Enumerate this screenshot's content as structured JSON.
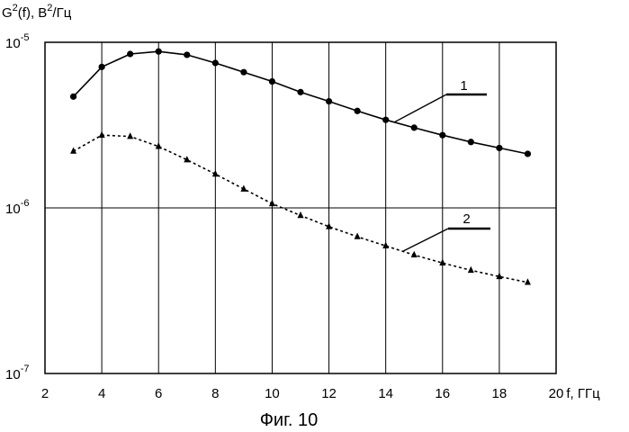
{
  "chart_data": {
    "type": "line",
    "caption": "Фиг. 10",
    "ylabel": {
      "base": "G",
      "sup": "2",
      "rest": "(f), В",
      "sup2": "2",
      "unit": "/Гц"
    },
    "xlabel": "f, ГГц",
    "xlim": [
      2,
      20
    ],
    "ylim": [
      1e-07,
      1e-05
    ],
    "yscale": "log",
    "grid": "vertical lines at even x, horizontal at decades",
    "x_ticks": [
      "2",
      "4",
      "6",
      "8",
      "10",
      "12",
      "14",
      "16",
      "18",
      "20"
    ],
    "y_ticks": [
      {
        "value": 1e-05,
        "base": "10",
        "exp": "-5"
      },
      {
        "value": 1e-06,
        "base": "10",
        "exp": "-6"
      },
      {
        "value": 1e-07,
        "base": "10",
        "exp": "-7"
      }
    ],
    "x": [
      3,
      4,
      5,
      6,
      7,
      8,
      9,
      10,
      11,
      12,
      13,
      14,
      15,
      16,
      17,
      18,
      19
    ],
    "series": [
      {
        "name": "1",
        "marker": "circle",
        "line": "solid",
        "values": [
          4.7e-06,
          7.1e-06,
          8.5e-06,
          8.8e-06,
          8.4e-06,
          7.5e-06,
          6.6e-06,
          5.8e-06,
          5e-06,
          4.4e-06,
          3.85e-06,
          3.4e-06,
          3.05e-06,
          2.75e-06,
          2.5e-06,
          2.3e-06,
          2.12e-06
        ]
      },
      {
        "name": "2",
        "marker": "triangle",
        "line": "dotted",
        "values": [
          2.2e-06,
          2.75e-06,
          2.7e-06,
          2.35e-06,
          1.95e-06,
          1.6e-06,
          1.3e-06,
          1.06e-06,
          9e-07,
          7.7e-07,
          6.7e-07,
          5.9e-07,
          5.2e-07,
          4.65e-07,
          4.2e-07,
          3.85e-07,
          3.55e-07
        ]
      }
    ]
  }
}
